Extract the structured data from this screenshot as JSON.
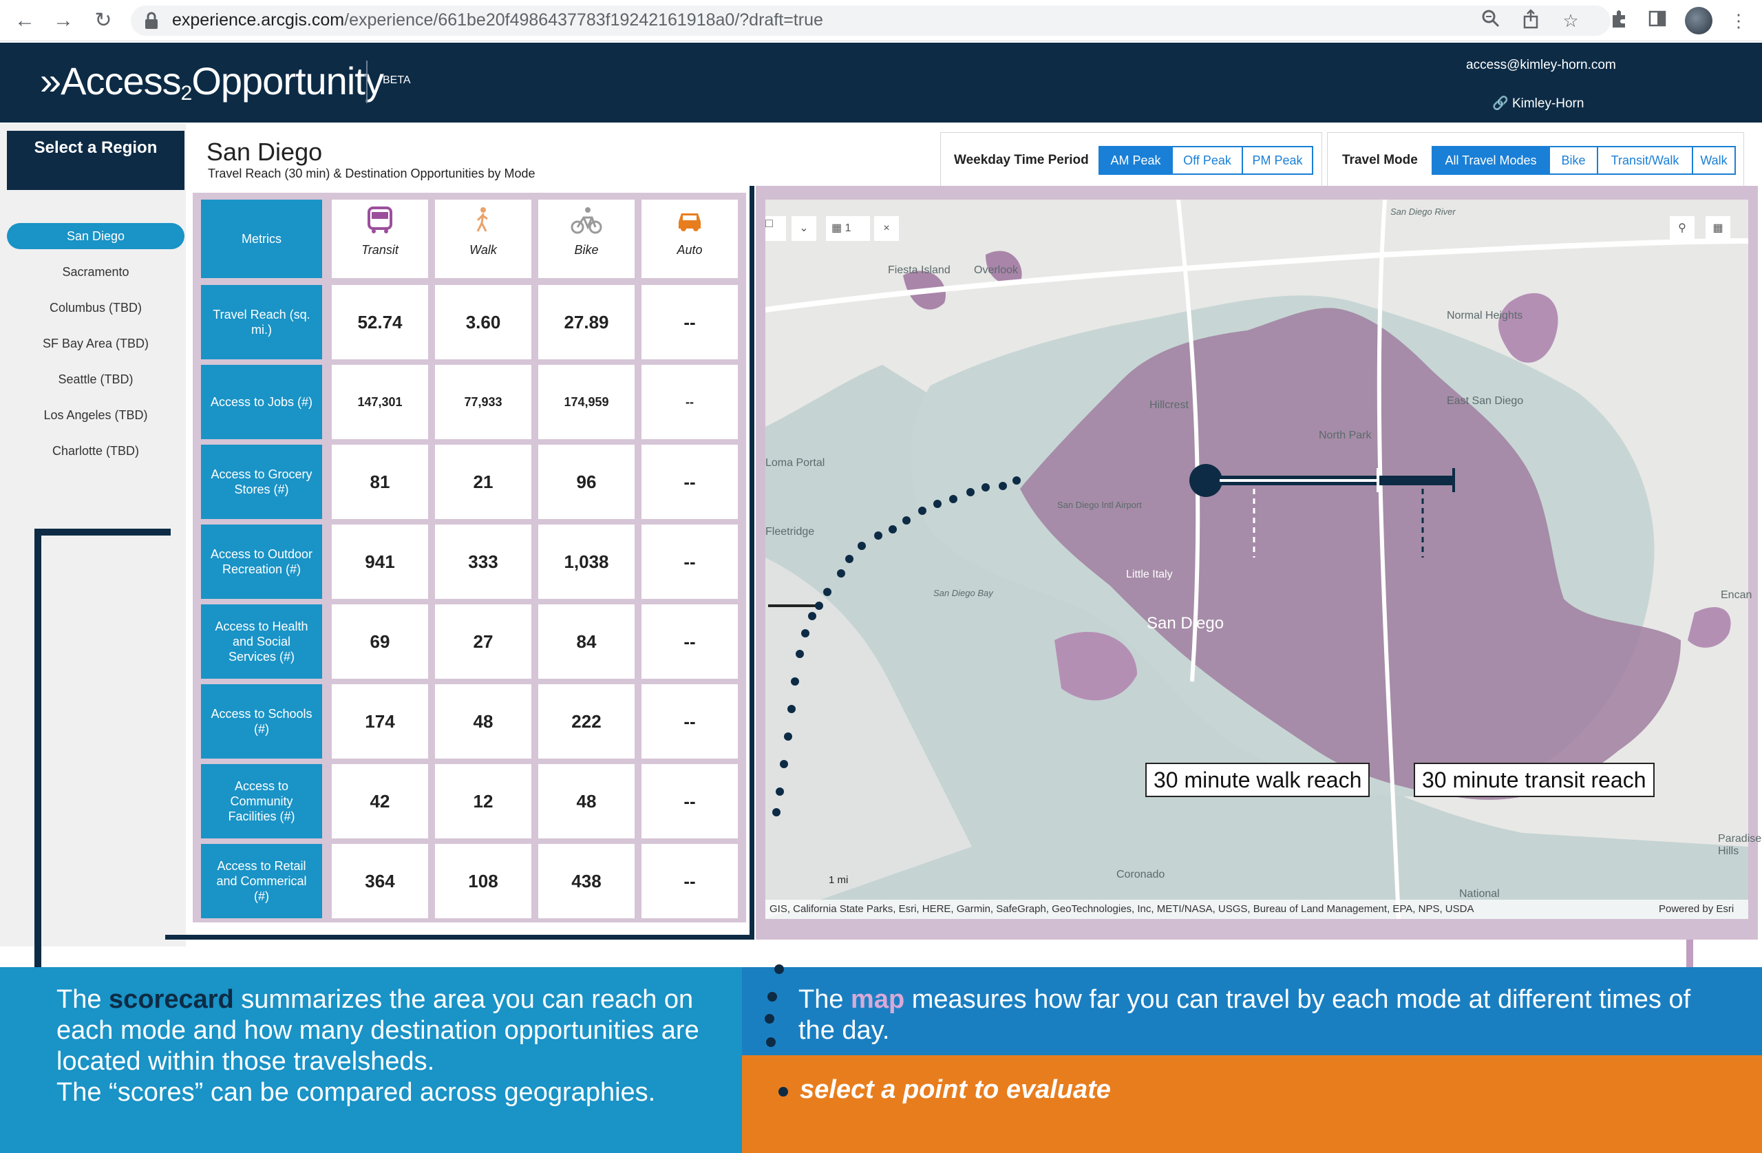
{
  "browser": {
    "url_host": "experience.arcgis.com",
    "url_path": "/experience/661be20f4986437783f19242161918a0/?draft=true"
  },
  "header": {
    "logo_main": "»Access",
    "logo_sub": "2",
    "logo_tail": "Opportunity",
    "beta": "BETA",
    "email": "access@kimley-horn.com",
    "org": "Kimley-Horn"
  },
  "sidebar": {
    "title": "Select a Region",
    "regions": [
      "San Diego",
      "Sacramento",
      "Columbus (TBD)",
      "SF Bay Area (TBD)",
      "Seattle (TBD)",
      "Los Angeles (TBD)",
      "Charlotte (TBD)"
    ],
    "active": "San Diego"
  },
  "main": {
    "title": "San Diego",
    "subtitle": "Travel Reach (30 min) & Destination Opportunities by Mode"
  },
  "filters": {
    "time_label": "Weekday Time Period",
    "time_options": [
      "AM Peak",
      "Off Peak",
      "PM Peak"
    ],
    "time_selected": "AM Peak",
    "mode_label": "Travel Mode",
    "mode_options": [
      "All Travel Modes",
      "Bike",
      "Transit/Walk",
      "Walk"
    ],
    "mode_selected": "All Travel Modes"
  },
  "scorecard": {
    "metrics_header": "Metrics",
    "modes": [
      "Transit",
      "Walk",
      "Bike",
      "Auto"
    ],
    "rows": [
      {
        "metric": "Travel Reach (sq. mi.)",
        "values": [
          "52.74",
          "3.60",
          "27.89",
          "--"
        ]
      },
      {
        "metric": "Access to Jobs (#)",
        "values": [
          "147,301",
          "77,933",
          "174,959",
          "--"
        ]
      },
      {
        "metric": "Access to Grocery Stores (#)",
        "values": [
          "81",
          "21",
          "96",
          "--"
        ]
      },
      {
        "metric": "Access to Outdoor Recreation (#)",
        "values": [
          "941",
          "333",
          "1,038",
          "--"
        ]
      },
      {
        "metric": "Access to Health and Social Services (#)",
        "values": [
          "69",
          "27",
          "84",
          "--"
        ]
      },
      {
        "metric": "Access to Schools (#)",
        "values": [
          "174",
          "48",
          "222",
          "--"
        ]
      },
      {
        "metric": "Access to Community Facilities (#)",
        "values": [
          "42",
          "12",
          "48",
          "--"
        ]
      },
      {
        "metric": "Access to Retail and Commerical (#)",
        "values": [
          "364",
          "108",
          "438",
          "--"
        ]
      }
    ]
  },
  "map": {
    "labels": {
      "fiesta": "Fiesta Island",
      "overlook": "Overlook",
      "normal": "Normal Heights",
      "hillcrest": "Hillcrest",
      "north_park": "North Park",
      "east_sd": "East San Diego",
      "loma": "Loma Portal",
      "fleetridge": "Fleetridge",
      "airport": "San Diego Intl Airport",
      "little_italy": "Little Italy",
      "sd_bay": "San Diego Bay",
      "city": "San Diego",
      "coronado": "Coronado",
      "national": "National",
      "encanto": "Encan",
      "paradise": "Paradise Hills",
      "river": "San Diego River"
    },
    "scale_label": "1 mi",
    "toolbar_count": "1",
    "attribution": "GIS, California State Parks, Esri, HERE, Garmin, SafeGraph, GeoTechnologies, Inc, METI/NASA, USGS, Bureau of Land Management, EPA, NPS, USDA",
    "powered": "Powered by Esri",
    "callout_walk": "30 minute walk reach",
    "callout_transit": "30 minute transit reach"
  },
  "banners": {
    "left_pre": "The ",
    "left_bold": "scorecard",
    "left_post": " summarizes the area you can reach on each mode and how many destination opportunities are located within those travelsheds.",
    "left_line2": "The “scores” can be compared across geographies.",
    "right_pre": "The ",
    "right_bold": "map",
    "right_post": " measures how far you can travel by each mode at different times of the day.",
    "orange": "select a point to evaluate"
  },
  "colors": {
    "navy": "#0d2b45",
    "teal": "#1a93c6",
    "blue": "#1a7fd6",
    "orange": "#e87d1e",
    "purple": "#9b6b9b"
  }
}
